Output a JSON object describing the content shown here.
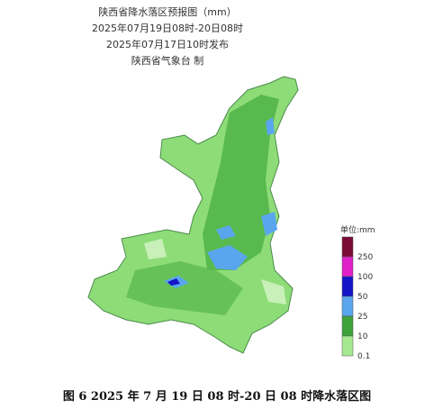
{
  "header": {
    "title": "陕西省降水落区预报图（mm）",
    "period": "2025年07月19日08时-20日08时",
    "issued": "2025年07月17日10时发布",
    "producer": "陕西省气象台 制"
  },
  "legend": {
    "unit": "单位:mm",
    "items": [
      {
        "label": "250",
        "color": "#7a0b35"
      },
      {
        "label": "100",
        "color": "#e020c8"
      },
      {
        "label": "50",
        "color": "#1414c8"
      },
      {
        "label": "25",
        "color": "#5aa6ee"
      },
      {
        "label": "10",
        "color": "#3da23a"
      },
      {
        "label": "0.1",
        "color": "#a6e890"
      }
    ]
  },
  "caption": "图 6 2025 年 7 月 19 日 08 时-20 日 08 时降水落区图"
}
